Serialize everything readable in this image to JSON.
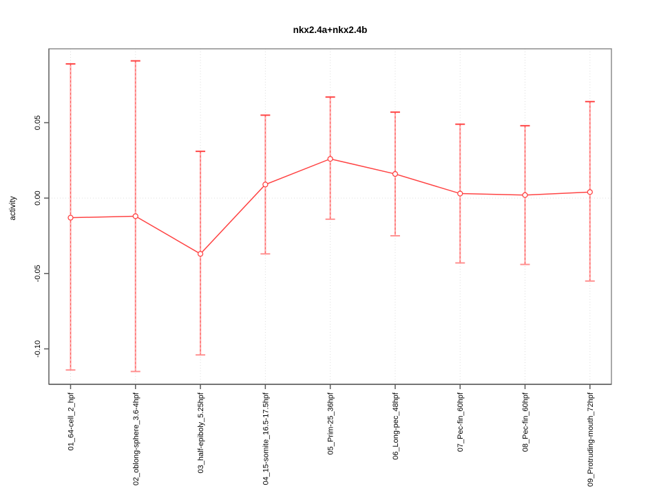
{
  "title": "nkx2.4a+nkx2.4b",
  "y_axis_label": "activity",
  "chart_data": {
    "type": "line",
    "title": "nkx2.4a+nkx2.4b",
    "xlabel": "",
    "ylabel": "activity",
    "categories": [
      "01_64-cell_2_hpf",
      "02_oblong-sphere_3.6-4hpf",
      "03_half-epiboly_5.25hpf",
      "04_15-somite_16.5-17.5hpf",
      "05_Prim-25_36hpf",
      "06_Long-pec_48hpf",
      "07_Pec-fin_60hpf",
      "08_Pec-fin_60hpf",
      "09_Protruding-mouth_72hpf"
    ],
    "series": [
      {
        "name": "activity",
        "values": [
          -0.013,
          -0.012,
          -0.037,
          0.009,
          0.026,
          0.016,
          0.003,
          0.002,
          0.004
        ],
        "ci_high": [
          0.089,
          0.091,
          0.031,
          0.055,
          0.067,
          0.057,
          0.049,
          0.048,
          0.064
        ],
        "ci_low": [
          -0.114,
          -0.115,
          -0.104,
          -0.037,
          -0.014,
          -0.025,
          -0.043,
          -0.044,
          -0.055
        ]
      }
    ],
    "ytick_values": [
      0.05,
      0.0,
      -0.05,
      -0.1
    ],
    "ytick_labels": [
      "0.05",
      "0.00",
      "-0.05",
      "-0.10"
    ],
    "ylim": [
      -0.1235,
      0.099
    ],
    "grid": "vertical dotted line at each category; horizontal dotted line at y=0",
    "legend_position": "none",
    "marker": "open-circle"
  },
  "colors": {
    "ci_bar": "#ffabab",
    "ci_bar_dash": "#ff5c5c",
    "cap_top": "#ff4444",
    "cap_bottom": "#ff9090",
    "line": "#ff4343",
    "marker_stroke": "#ff4343",
    "marker_fill": "#ffffff",
    "gridline": "#dcdcdc",
    "box": "#8c8c8c",
    "axis": "#595959",
    "text": "#000000"
  }
}
